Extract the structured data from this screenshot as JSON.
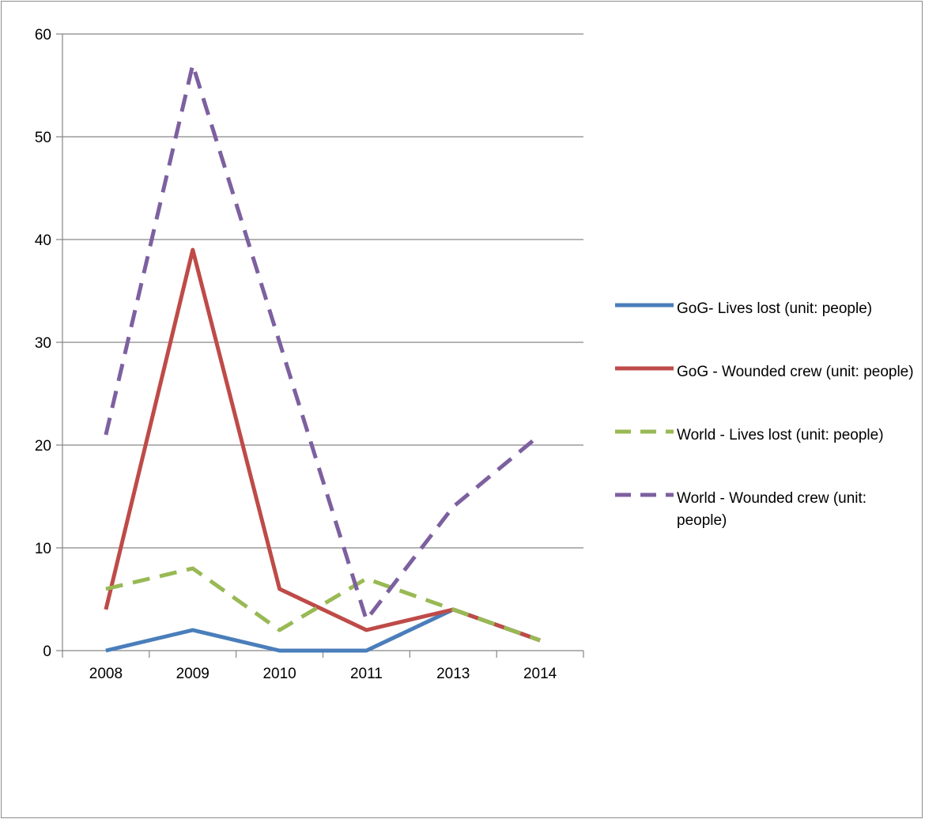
{
  "chart_data": {
    "type": "line",
    "title": "",
    "xlabel": "",
    "ylabel": "",
    "categories": [
      "2008",
      "2009",
      "2010",
      "2011",
      "2013",
      "2014"
    ],
    "ylim": [
      0,
      60
    ],
    "yticks": [
      0,
      10,
      20,
      30,
      40,
      50,
      60
    ],
    "grid": "horizontal",
    "legend_position": "right",
    "series": [
      {
        "name": "GoG- Lives lost (unit: people)",
        "values": [
          0,
          2,
          0,
          0,
          4,
          1
        ],
        "color": "#4a7ebb",
        "dash": "solid"
      },
      {
        "name": "GoG - Wounded crew (unit: people)",
        "values": [
          4,
          39,
          6,
          2,
          4,
          1
        ],
        "color": "#be4b48",
        "dash": "solid"
      },
      {
        "name": "World - Lives lost (unit: people)",
        "values": [
          6,
          8,
          2,
          7,
          4,
          1
        ],
        "color": "#98b954",
        "dash": "dashed"
      },
      {
        "name": "World - Wounded crew (unit: people)",
        "values": [
          21,
          57,
          30,
          3,
          14,
          21
        ],
        "color": "#7d60a0",
        "dash": "dashed"
      }
    ]
  }
}
